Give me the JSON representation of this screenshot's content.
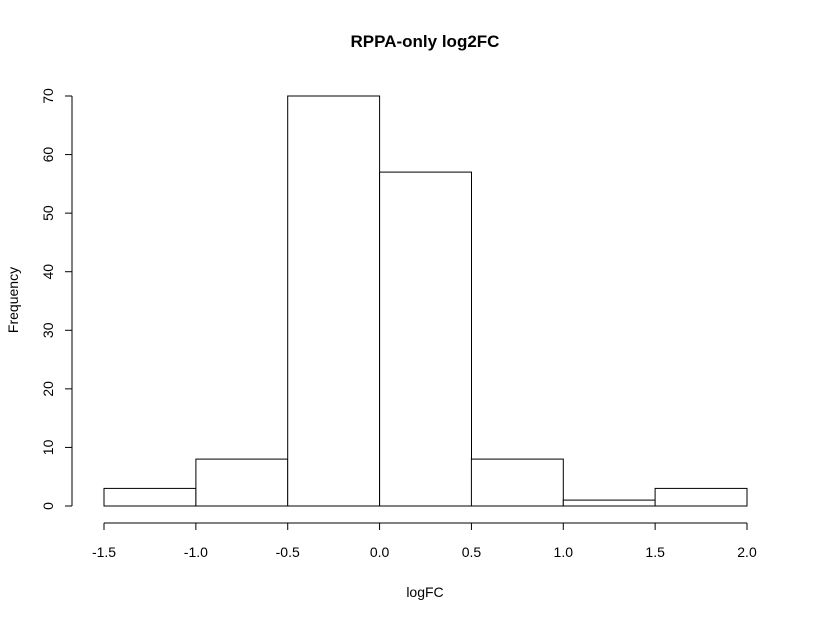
{
  "chart_data": {
    "type": "bar",
    "title": "RPPA-only log2FC",
    "xlabel": "logFC",
    "ylabel": "Frequency",
    "bins": [
      {
        "from": -1.5,
        "to": -1.0,
        "count": 3
      },
      {
        "from": -1.0,
        "to": -0.5,
        "count": 8
      },
      {
        "from": -0.5,
        "to": 0.0,
        "count": 70
      },
      {
        "from": 0.0,
        "to": 0.5,
        "count": 57
      },
      {
        "from": 0.5,
        "to": 1.0,
        "count": 8
      },
      {
        "from": 1.0,
        "to": 1.5,
        "count": 1
      },
      {
        "from": 1.5,
        "to": 2.0,
        "count": 3
      }
    ],
    "xlim": [
      -1.5,
      2.0
    ],
    "ylim": [
      0,
      70
    ],
    "x_ticks": [
      -1.5,
      -1.0,
      -0.5,
      0.0,
      0.5,
      1.0,
      1.5,
      2.0
    ],
    "x_tick_labels": [
      "-1.5",
      "-1.0",
      "-0.5",
      "0.0",
      "0.5",
      "1.0",
      "1.5",
      "2.0"
    ],
    "y_ticks": [
      0,
      10,
      20,
      30,
      40,
      50,
      60,
      70
    ],
    "y_tick_labels": [
      "0",
      "10",
      "20",
      "30",
      "40",
      "50",
      "60",
      "70"
    ],
    "grid": false,
    "bar_fill": "#ffffff",
    "bar_stroke": "#000000"
  }
}
